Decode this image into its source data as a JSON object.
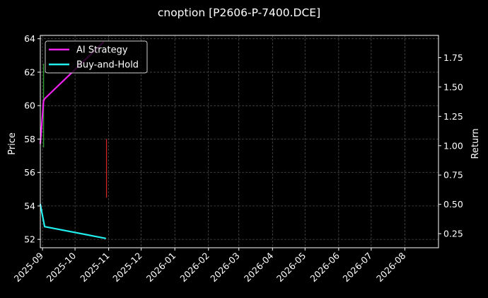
{
  "chart_data": {
    "type": "line",
    "title": "cnoption [P2606-P-7400.DCE]",
    "xlabel": "",
    "ylabel_left": "Price",
    "ylabel_right": "Return",
    "x_ticks": [
      "2025-09",
      "2025-10",
      "2025-11",
      "2025-12",
      "2026-01",
      "2026-02",
      "2026-03",
      "2026-04",
      "2026-05",
      "2026-06",
      "2026-07",
      "2026-08"
    ],
    "xlim": [
      "2025-08-30",
      "2026-09-01"
    ],
    "ylim_left": [
      51.5,
      64.2
    ],
    "ylim_right": [
      0.13,
      1.94
    ],
    "y_ticks_left": [
      52,
      54,
      56,
      58,
      60,
      62,
      64
    ],
    "y_ticks_right": [
      0.25,
      0.5,
      0.75,
      1.0,
      1.25,
      1.5,
      1.75
    ],
    "y_tick_labels_left": [
      "52",
      "54",
      "56",
      "58",
      "60",
      "62",
      "64"
    ],
    "y_tick_labels_right": [
      "0.25",
      "0.50",
      "0.75",
      "1.00",
      "1.25",
      "1.50",
      "1.75"
    ],
    "grid": true,
    "legend_position": "top-left",
    "candles": [
      {
        "date": "2025-09-02",
        "open": 57.5,
        "close": 62.5,
        "high": 62.5,
        "low": 57.5,
        "color": "#2ca02c"
      },
      {
        "date": "2025-10-30",
        "open": 58.0,
        "close": 54.5,
        "high": 58.0,
        "low": 54.5,
        "color": "#d62728"
      }
    ],
    "series": [
      {
        "name": "AI Strategy",
        "axis": "right",
        "color": "#ee22ee",
        "x": [
          "2025-08-30",
          "2025-09-02",
          "2025-09-03",
          "2025-10-27"
        ],
        "y": [
          1.02,
          1.38,
          1.4,
          1.88
        ]
      },
      {
        "name": "Buy-and-Hold",
        "axis": "right",
        "color": "#22eeee",
        "x": [
          "2025-08-30",
          "2025-09-03",
          "2025-10-29"
        ],
        "y": [
          0.5,
          0.31,
          0.21
        ]
      }
    ]
  }
}
